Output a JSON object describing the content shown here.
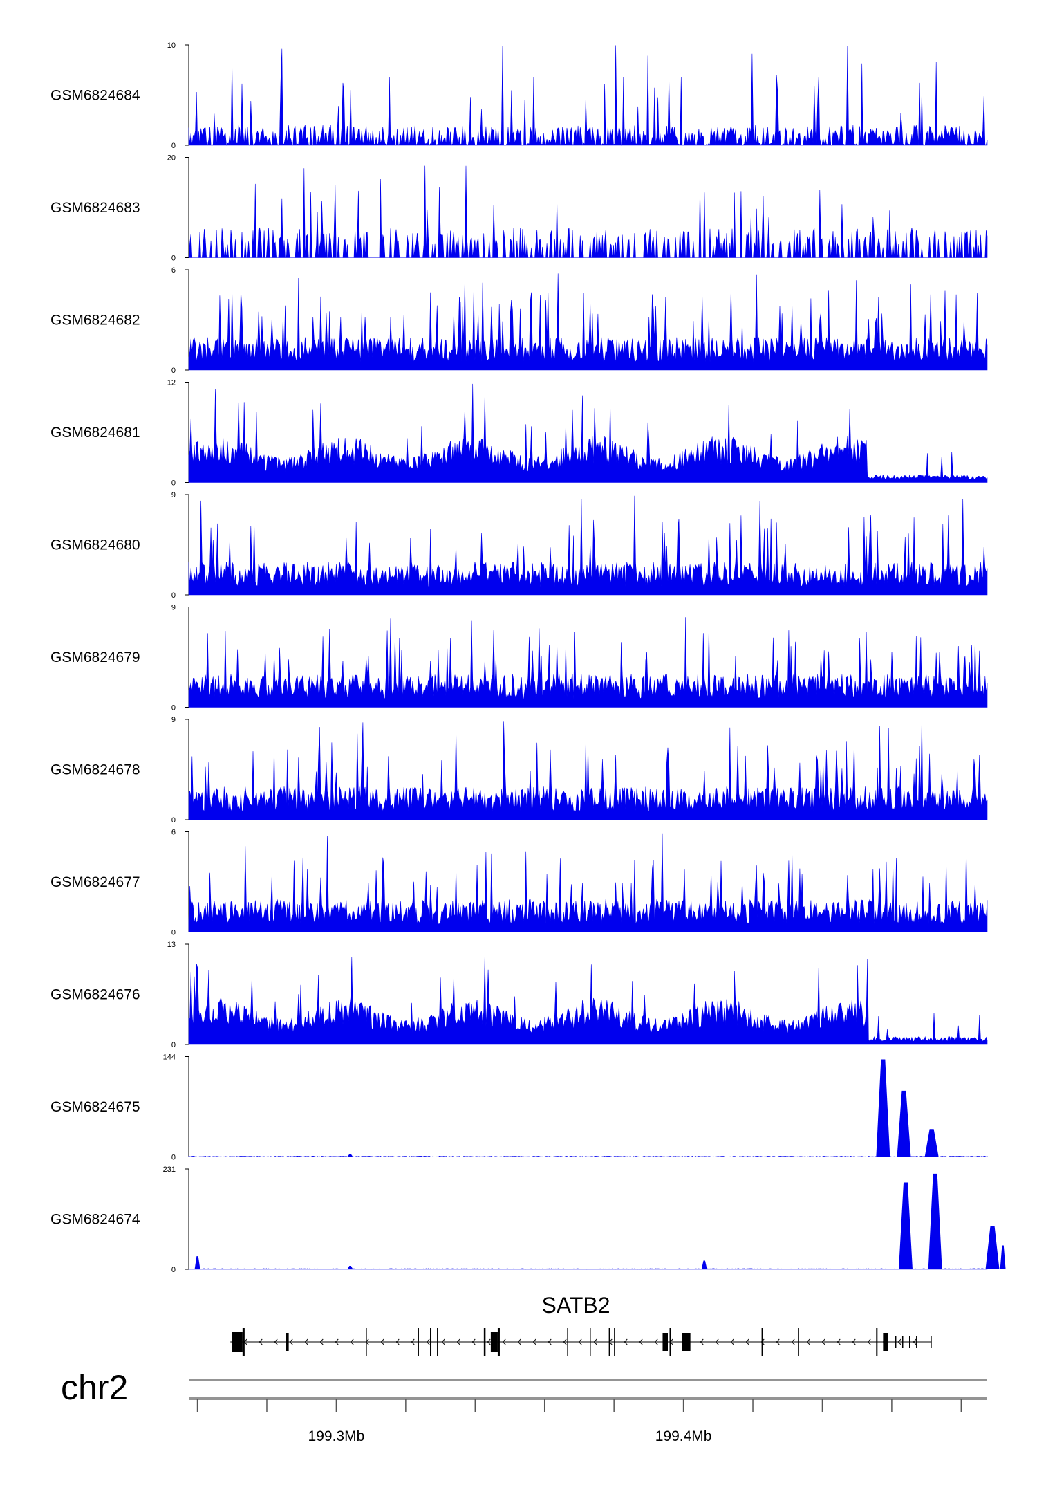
{
  "chart_data": {
    "type": "area",
    "tracks": [
      {
        "name": "GSM6824684",
        "ymax": "10",
        "ymin": "0",
        "pattern": "spiky",
        "peaks": []
      },
      {
        "name": "GSM6824683",
        "ymax": "20",
        "ymin": "0",
        "pattern": "sparse",
        "peaks": []
      },
      {
        "name": "GSM6824682",
        "ymax": "6",
        "ymin": "0",
        "pattern": "dense",
        "peaks": []
      },
      {
        "name": "GSM6824681",
        "ymax": "12",
        "ymin": "0",
        "pattern": "broad",
        "peaks": []
      },
      {
        "name": "GSM6824680",
        "ymax": "9",
        "ymin": "0",
        "pattern": "dense",
        "peaks": []
      },
      {
        "name": "GSM6824679",
        "ymax": "9",
        "ymin": "0",
        "pattern": "dense",
        "peaks": []
      },
      {
        "name": "GSM6824678",
        "ymax": "9",
        "ymin": "0",
        "pattern": "dense",
        "peaks": []
      },
      {
        "name": "GSM6824677",
        "ymax": "6",
        "ymin": "0",
        "pattern": "dense",
        "peaks": []
      },
      {
        "name": "GSM6824676",
        "ymax": "13",
        "ymin": "0",
        "pattern": "broad",
        "peaks": []
      },
      {
        "name": "GSM6824675",
        "ymax": "144",
        "ymin": "0",
        "pattern": "flat",
        "peaks": [
          [
            199.4575,
            140
          ],
          [
            199.4635,
            95
          ],
          [
            199.4715,
            40
          ],
          [
            199.304,
            4
          ]
        ]
      },
      {
        "name": "GSM6824674",
        "ymax": "231",
        "ymin": "0",
        "pattern": "flat",
        "peaks": [
          [
            199.464,
            200
          ],
          [
            199.4725,
            220
          ],
          [
            199.489,
            100
          ],
          [
            199.406,
            20
          ],
          [
            199.26,
            30
          ],
          [
            199.304,
            8
          ],
          [
            199.492,
            55
          ]
        ]
      }
    ],
    "gene": {
      "name": "SATB2",
      "strand": "-",
      "start": 199.2695,
      "end": 199.4715,
      "exons": [
        {
          "x": 199.27,
          "w": 0.003,
          "h": "tall"
        },
        {
          "x": 199.273,
          "w": 0.0006,
          "h": "line"
        },
        {
          "x": 199.2855,
          "w": 0.0008,
          "h": "mid"
        },
        {
          "x": 199.3085,
          "w": 0.0003,
          "h": "line"
        },
        {
          "x": 199.3235,
          "w": 0.0003,
          "h": "line"
        },
        {
          "x": 199.327,
          "w": 0.0004,
          "h": "line"
        },
        {
          "x": 199.329,
          "w": 0.0003,
          "h": "line"
        },
        {
          "x": 199.3425,
          "w": 0.0005,
          "h": "line"
        },
        {
          "x": 199.3445,
          "w": 0.002,
          "h": "tall"
        },
        {
          "x": 199.3465,
          "w": 0.0006,
          "h": "line"
        },
        {
          "x": 199.3665,
          "w": 0.0003,
          "h": "line"
        },
        {
          "x": 199.373,
          "w": 0.0003,
          "h": "line"
        },
        {
          "x": 199.3785,
          "w": 0.0003,
          "h": "line"
        },
        {
          "x": 199.38,
          "w": 0.0003,
          "h": "line"
        },
        {
          "x": 199.394,
          "w": 0.0015,
          "h": "mid"
        },
        {
          "x": 199.396,
          "w": 0.0004,
          "h": "line"
        },
        {
          "x": 199.3995,
          "w": 0.0025,
          "h": "mid"
        },
        {
          "x": 199.4225,
          "w": 0.0003,
          "h": "line"
        },
        {
          "x": 199.433,
          "w": 0.0003,
          "h": "line"
        },
        {
          "x": 199.4555,
          "w": 0.0004,
          "h": "line"
        },
        {
          "x": 199.4575,
          "w": 0.0015,
          "h": "mid"
        },
        {
          "x": 199.461,
          "w": 0.0003,
          "h": "small"
        },
        {
          "x": 199.463,
          "w": 0.0003,
          "h": "small"
        },
        {
          "x": 199.465,
          "w": 0.0003,
          "h": "small"
        },
        {
          "x": 199.467,
          "w": 0.0003,
          "h": "small"
        },
        {
          "x": 199.4712,
          "w": 0.0003,
          "h": "small"
        }
      ]
    },
    "x_axis": {
      "chrom": "chr2",
      "unit": "Mb",
      "range": [
        199.2575,
        199.4875
      ],
      "major_ticks": [
        199.26,
        199.28,
        199.3,
        199.32,
        199.34,
        199.36,
        199.38,
        199.4,
        199.42,
        199.44,
        199.46,
        199.48
      ],
      "labeled_ticks": [
        {
          "value": 199.3,
          "label": "199.3Mb"
        },
        {
          "value": 199.4,
          "label": "199.4Mb"
        }
      ]
    },
    "colors": {
      "signal": "#0000ee",
      "gene": "#000000",
      "axis": "#555555"
    }
  }
}
